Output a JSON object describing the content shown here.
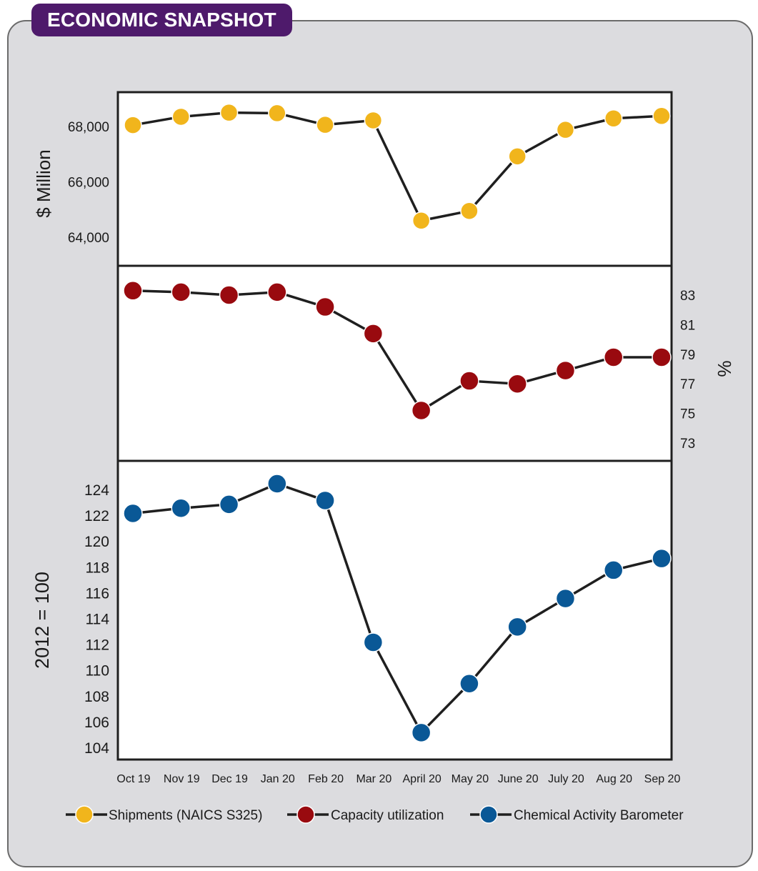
{
  "header": {
    "title": "ECONOMIC SNAPSHOT"
  },
  "colors": {
    "panel_bg": "#dcdcdf",
    "title_bg": "#4e1a6b",
    "line": "#1f1f1f",
    "shipments": "#f1b51c",
    "capacity": "#990a0f",
    "cab": "#0a5896"
  },
  "chart_data": {
    "type": "line",
    "categories": [
      "Oct 19",
      "Nov 19",
      "Dec 19",
      "Jan 20",
      "Feb 20",
      "Mar 20",
      "April 20",
      "May 20",
      "June 20",
      "July 20",
      "Aug 20",
      "Sep 20"
    ],
    "series": [
      {
        "name": "Shipments (NAICS S325)",
        "panel": "top",
        "ylabel": "$ Million",
        "axis_side": "left",
        "yticks": [
          "64,000",
          "66,000",
          "68,000"
        ],
        "ytick_values": [
          64000,
          66000,
          68000
        ],
        "values": [
          68050,
          68350,
          68500,
          68480,
          68060,
          68220,
          64600,
          64950,
          66920,
          67880,
          68290,
          68380
        ]
      },
      {
        "name": "Capacity utilization",
        "panel": "middle",
        "ylabel": "%",
        "axis_side": "right",
        "yticks": [
          "73",
          "75",
          "77",
          "79",
          "81",
          "83"
        ],
        "ytick_values": [
          73,
          75,
          77,
          79,
          81,
          83
        ],
        "values": [
          83.3,
          83.2,
          83.0,
          83.2,
          82.2,
          80.4,
          75.2,
          77.2,
          77.0,
          77.9,
          78.8,
          78.8
        ]
      },
      {
        "name": "Chemical Activity Barometer",
        "panel": "bottom",
        "ylabel": "2012 = 100",
        "axis_side": "left",
        "yticks": [
          "104",
          "106",
          "108",
          "110",
          "112",
          "114",
          "116",
          "118",
          "120",
          "122",
          "124"
        ],
        "ytick_values": [
          104,
          106,
          108,
          110,
          112,
          114,
          116,
          118,
          120,
          122,
          124
        ],
        "values": [
          122.2,
          122.6,
          122.9,
          124.5,
          123.2,
          112.2,
          105.2,
          109.0,
          113.4,
          115.6,
          117.8,
          118.7
        ]
      }
    ],
    "legend": [
      "Shipments (NAICS S325)",
      "Capacity utilization",
      "Chemical Activity Barometer"
    ],
    "legend_position": "bottom"
  }
}
